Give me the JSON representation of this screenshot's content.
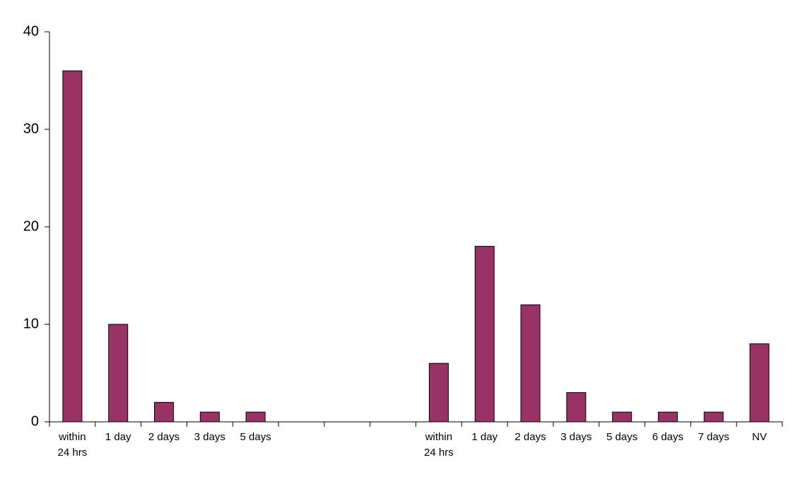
{
  "chart_data": {
    "type": "bar",
    "categories": [
      "within 24 hrs",
      "1 day",
      "2 days",
      "3 days",
      "5 days",
      null,
      null,
      null,
      "within 24 hrs",
      "1 day",
      "2 days",
      "3 days",
      "5 days",
      "6 days",
      "7 days",
      "NV"
    ],
    "values": [
      36,
      10,
      2,
      1,
      1,
      null,
      null,
      null,
      6,
      18,
      12,
      3,
      1,
      1,
      1,
      8
    ],
    "color": "#993366",
    "ylim": [
      0,
      40
    ],
    "yticks": [
      0,
      10,
      20,
      30,
      40
    ],
    "grid": false
  }
}
